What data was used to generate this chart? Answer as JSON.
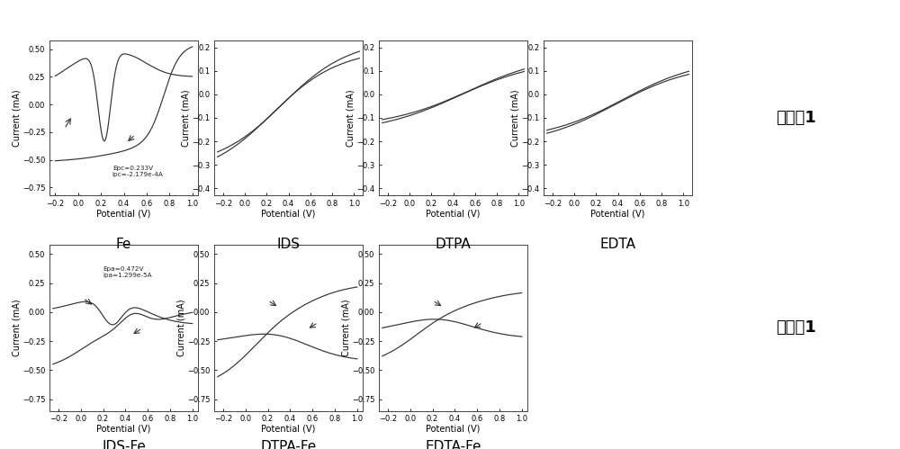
{
  "fig_width": 10.0,
  "fig_height": 4.99,
  "bg_color": "#ffffff",
  "row1_labels": [
    "Fe",
    "IDS",
    "DTPA",
    "EDTA"
  ],
  "row2_labels": [
    "IDS-Fe",
    "DTPA-Fe",
    "EDTA-Fe"
  ],
  "label_row1": "对比例1",
  "label_row2": "实施例1",
  "line_color": "#333333",
  "tick_fontsize": 6.0,
  "label_fontsize": 7.0,
  "sublabel_fontsize": 11,
  "rowlabel_fontsize": 13
}
